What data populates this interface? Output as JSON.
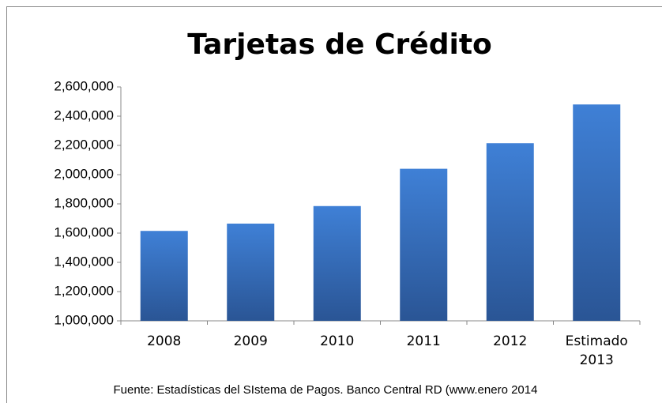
{
  "chart_data": {
    "type": "bar",
    "title": "Tarjetas de Crédito",
    "categories": [
      "2008",
      "2009",
      "2010",
      "2011",
      "2012",
      "Estimado 2013"
    ],
    "values": [
      1615000,
      1665000,
      1785000,
      2040000,
      2215000,
      2480000
    ],
    "color": "#3a73c4",
    "ylim": [
      1000000,
      2600000
    ],
    "yticks": [
      {
        "value": 1000000,
        "label": "1,000,000"
      },
      {
        "value": 1200000,
        "label": "1,200,000"
      },
      {
        "value": 1400000,
        "label": "1,400,000"
      },
      {
        "value": 1600000,
        "label": "1,600,000"
      },
      {
        "value": 1800000,
        "label": "1,800,000"
      },
      {
        "value": 2000000,
        "label": "2,000,000"
      },
      {
        "value": 2200000,
        "label": "2,200,000"
      },
      {
        "value": 2400000,
        "label": "2,400,000"
      },
      {
        "value": 2600000,
        "label": "2,600,000"
      }
    ],
    "grid": false,
    "source": "Fuente: Estadísticas del SIstema de Pagos. Banco Central RD (www.enero 2014"
  }
}
